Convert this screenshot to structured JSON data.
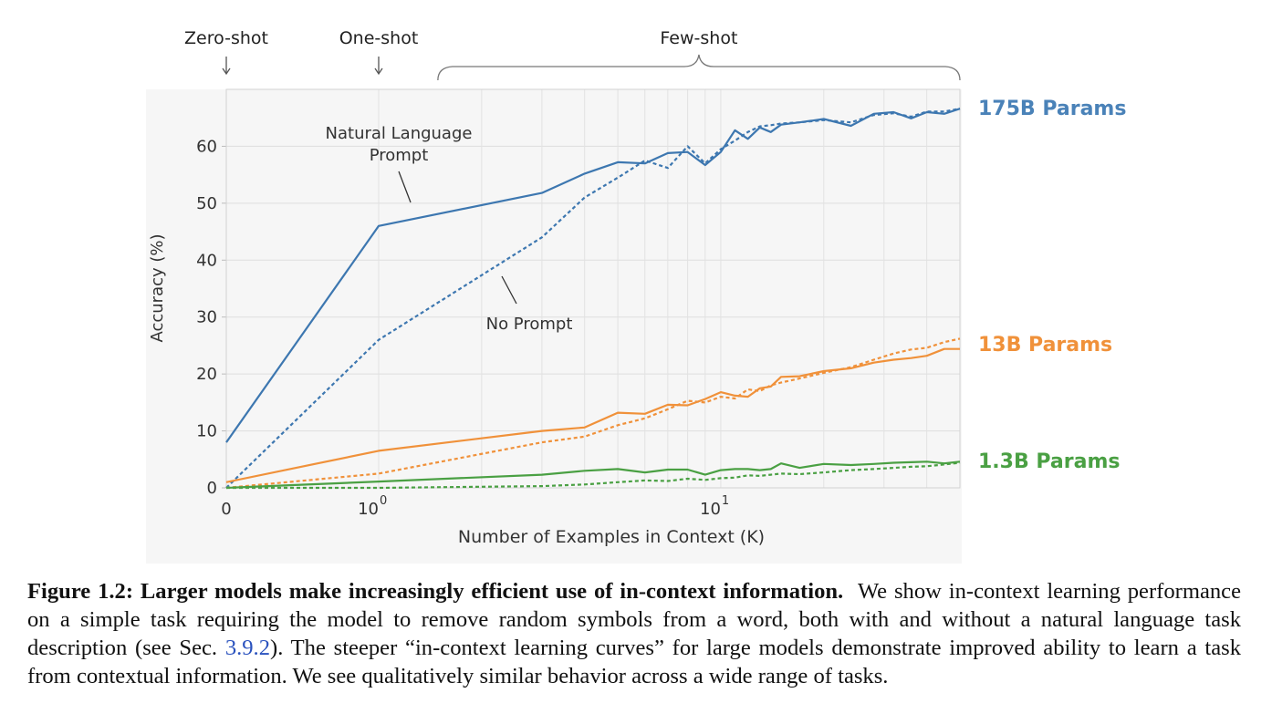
{
  "chart_data": {
    "type": "line",
    "xscale": "symlog",
    "xlabel": "Number of Examples in Context  (K)",
    "ylabel": "Accuracy (%)",
    "xlim": [
      0,
      50
    ],
    "ylim": [
      0,
      70
    ],
    "x_ticks": [
      {
        "value": 0,
        "base": "0",
        "exp": ""
      },
      {
        "value": 1,
        "base": "10",
        "exp": "0"
      },
      {
        "value": 10,
        "base": "10",
        "exp": "1"
      }
    ],
    "y_ticks": [
      0,
      10,
      20,
      30,
      40,
      50,
      60
    ],
    "grid": true,
    "regimes": [
      {
        "label": "Zero-shot",
        "x": 0,
        "kind": "arrow"
      },
      {
        "label": "One-shot",
        "x": 1,
        "kind": "arrow"
      },
      {
        "label": "Few-shot",
        "x_range": [
          2,
          50
        ],
        "kind": "brace"
      }
    ],
    "annotations": [
      {
        "text": [
          "Natural Language",
          "Prompt"
        ],
        "target_series": "175B-prompt"
      },
      {
        "text": [
          "No Prompt"
        ],
        "target_series": "175B-noprompt"
      }
    ],
    "model_labels": [
      {
        "text": "175B Params",
        "color": "#4a82b8",
        "y": 66.5
      },
      {
        "text": "13B Params",
        "color": "#f0913a",
        "y": 25
      },
      {
        "text": "1.3B Params",
        "color": "#4aa043",
        "y": 4.5
      }
    ],
    "series": [
      {
        "id": "175B-prompt",
        "color": "#3d77b0",
        "dash": "solid",
        "x": [
          0,
          1,
          3,
          4,
          5,
          6,
          7,
          8,
          9,
          10,
          11,
          12,
          13,
          14,
          15,
          17,
          20,
          24,
          28,
          32,
          36,
          40,
          45,
          50
        ],
        "y": [
          8,
          46,
          51.8,
          55.2,
          57.2,
          57,
          58.8,
          59,
          56.7,
          59,
          62.8,
          61.3,
          63.3,
          62.5,
          63.8,
          64.2,
          64.8,
          63.6,
          65.7,
          66,
          64.9,
          66,
          65.7,
          66.6
        ]
      },
      {
        "id": "175B-noprompt",
        "color": "#3d77b0",
        "dash": "4,3",
        "x": [
          0,
          1,
          3,
          4,
          5,
          6,
          7,
          8,
          9,
          10,
          11,
          12,
          13,
          14,
          15,
          17,
          20,
          24,
          28,
          32,
          36,
          40,
          45,
          50
        ],
        "y": [
          0,
          26,
          44,
          51,
          54.5,
          57.5,
          56.2,
          60,
          57,
          59.5,
          61,
          62.5,
          63.5,
          63.7,
          64,
          64.2,
          64.6,
          64.2,
          65.5,
          65.8,
          65.2,
          66.1,
          66.1,
          66.6
        ]
      },
      {
        "id": "13B-prompt",
        "color": "#f0913a",
        "dash": "solid",
        "x": [
          0,
          1,
          3,
          4,
          5,
          6,
          7,
          8,
          9,
          10,
          11,
          12,
          13,
          14,
          15,
          17,
          20,
          24,
          28,
          32,
          36,
          40,
          45,
          50
        ],
        "y": [
          1,
          6.5,
          10,
          10.6,
          13.2,
          13,
          14.6,
          14.5,
          15.6,
          16.8,
          16.2,
          16,
          17.5,
          17.8,
          19.5,
          19.6,
          20.5,
          21,
          22,
          22.5,
          22.8,
          23.2,
          24.4,
          24.4
        ]
      },
      {
        "id": "13B-noprompt",
        "color": "#f0913a",
        "dash": "4,3",
        "x": [
          0,
          1,
          3,
          4,
          5,
          6,
          7,
          8,
          9,
          10,
          11,
          12,
          13,
          14,
          15,
          17,
          20,
          24,
          28,
          32,
          36,
          40,
          45,
          50
        ],
        "y": [
          0,
          2.5,
          8,
          9,
          11,
          12.2,
          13.8,
          15.3,
          15,
          16,
          15.7,
          17.3,
          17,
          18,
          18.5,
          19.2,
          20.2,
          21.2,
          22.5,
          23.6,
          24.3,
          24.6,
          25.6,
          26.2
        ]
      },
      {
        "id": "1.3B-prompt",
        "color": "#4aa043",
        "dash": "solid",
        "x": [
          0,
          1,
          3,
          4,
          5,
          6,
          7,
          8,
          9,
          10,
          11,
          12,
          13,
          14,
          15,
          17,
          20,
          24,
          28,
          32,
          36,
          40,
          45,
          50
        ],
        "y": [
          0,
          1.1,
          2.3,
          3,
          3.3,
          2.7,
          3.2,
          3.2,
          2.3,
          3.1,
          3.3,
          3.3,
          3.1,
          3.3,
          4.3,
          3.5,
          4.2,
          4,
          4.2,
          4.4,
          4.5,
          4.6,
          4.3,
          4.6
        ]
      },
      {
        "id": "1.3B-noprompt",
        "color": "#4aa043",
        "dash": "4,3",
        "x": [
          0,
          1,
          3,
          4,
          5,
          6,
          7,
          8,
          9,
          10,
          11,
          12,
          13,
          14,
          15,
          17,
          20,
          24,
          28,
          32,
          36,
          40,
          45,
          50
        ],
        "y": [
          0,
          0,
          0.3,
          0.6,
          1,
          1.3,
          1.2,
          1.6,
          1.4,
          1.7,
          1.8,
          2.2,
          2.1,
          2.3,
          2.5,
          2.4,
          2.7,
          3.1,
          3.3,
          3.5,
          3.7,
          3.8,
          4.1,
          4.4
        ]
      }
    ]
  },
  "caption": {
    "label": "Figure 1.2:",
    "title": "Larger models make increasingly efficient use of in-context information.",
    "text_before_ref": "We show in-context learning performance on a simple task requiring the model to remove random symbols from a word, both with and without a natural language task description (see Sec.",
    "ref": "3.9.2",
    "text_after_ref": "). The steeper “in-context learning curves” for large models demonstrate improved ability to learn a task from contextual information. We see qualitatively similar behavior across a wide range of tasks."
  }
}
